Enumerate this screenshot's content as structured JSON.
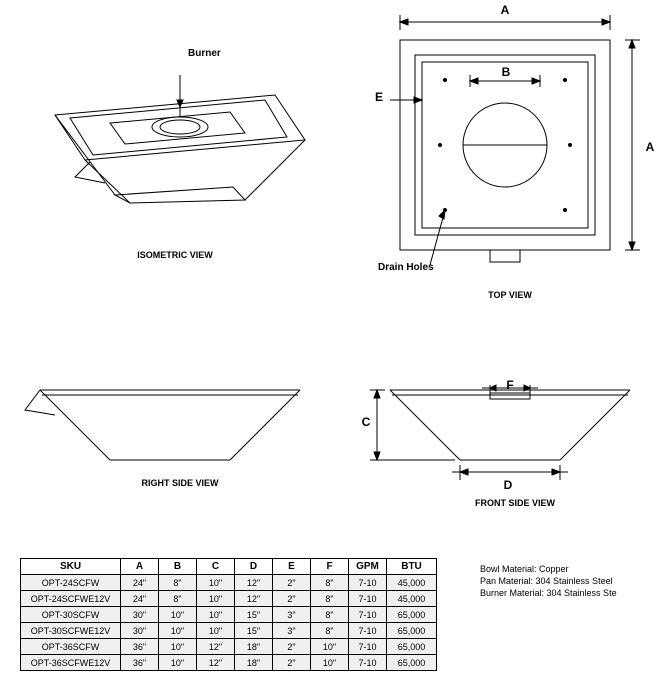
{
  "labels": {
    "burner": "Burner",
    "drain_holes": "Drain Holes",
    "isometric": "ISOMETRIC VIEW",
    "top": "TOP VIEW",
    "right": "RIGHT SIDE VIEW",
    "front": "FRONT SIDE VIEW"
  },
  "dims": {
    "A": "A",
    "B": "B",
    "C": "C",
    "D": "D",
    "E": "E",
    "F": "F"
  },
  "table": {
    "columns": [
      "SKU",
      "A",
      "B",
      "C",
      "D",
      "E",
      "F",
      "GPM",
      "BTU"
    ],
    "rows": [
      [
        "OPT-24SCFW",
        "24\"",
        "8\"",
        "10\"",
        "12\"",
        "2\"",
        "8\"",
        "7-10",
        "45,000"
      ],
      [
        "OPT-24SCFWE12V",
        "24\"",
        "8\"",
        "10\"",
        "12\"",
        "2\"",
        "8\"",
        "7-10",
        "45,000"
      ],
      [
        "OPT-30SCFW",
        "30\"",
        "10\"",
        "10\"",
        "15\"",
        "3\"",
        "8\"",
        "7-10",
        "65,000"
      ],
      [
        "OPT-30SCFWE12V",
        "30\"",
        "10\"",
        "10\"",
        "15\"",
        "3\"",
        "8\"",
        "7-10",
        "65,000"
      ],
      [
        "OPT-36SCFW",
        "36\"",
        "10\"",
        "12\"",
        "18\"",
        "2\"",
        "10\"",
        "7-10",
        "65,000"
      ],
      [
        "OPT-36SCFWE12V",
        "36\"",
        "10\"",
        "12\"",
        "18\"",
        "2\"",
        "10\"",
        "7-10",
        "65,000"
      ]
    ]
  },
  "materials": {
    "bowl": "Bowl Material: Copper",
    "pan": "Pan Material: 304 Stainless Steel",
    "burner": "Burner Material: 304 Stainless Ste"
  },
  "style": {
    "stroke": "#000000",
    "stroke_width": 1,
    "arrow": "#000000",
    "fontsize_label": 9,
    "fontsize_callout": 10,
    "fontsize_dim": 12
  }
}
